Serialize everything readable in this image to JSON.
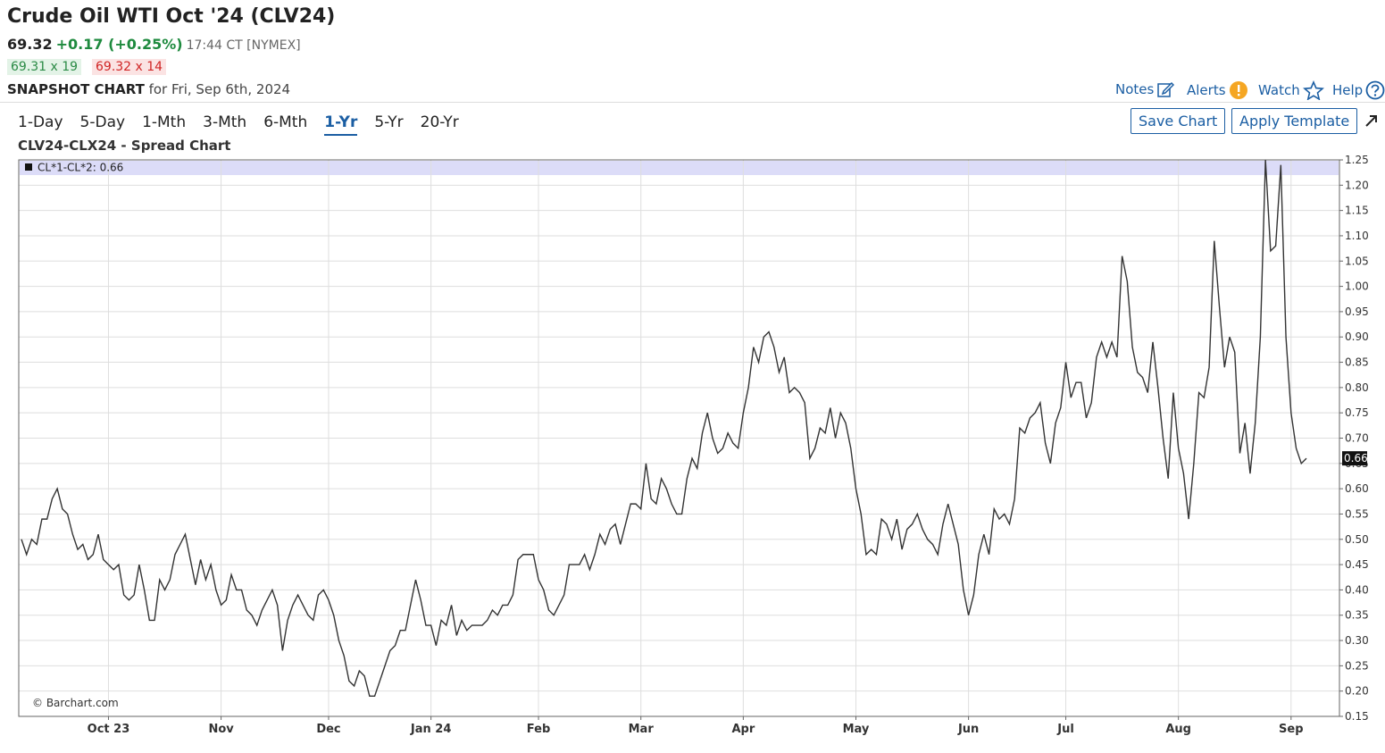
{
  "header": {
    "title": "Crude Oil WTI Oct '24 (CLV24)",
    "price": "69.32",
    "change": "+0.17 (+0.25%)",
    "time": "17:44 CT [NYMEX]",
    "bid": "69.31 x 19",
    "ask": "69.32 x 14",
    "snapshot_label": "SNAPSHOT CHART",
    "snapshot_date": "for Fri, Sep 6th, 2024"
  },
  "links": [
    "Notes",
    "Alerts",
    "Watch",
    "Help"
  ],
  "periods": [
    "1-Day",
    "5-Day",
    "1-Mth",
    "3-Mth",
    "6-Mth",
    "1-Yr",
    "5-Yr",
    "20-Yr"
  ],
  "active_period_index": 5,
  "buttons": [
    "Save Chart",
    "Apply Template"
  ],
  "chart_data": {
    "type": "line",
    "title": "CLV24-CLX24 - Spread Chart",
    "credit": "© Barchart.com",
    "categories": [
      null,
      null,
      null,
      null,
      null,
      null,
      null,
      null,
      null,
      null,
      null,
      null,
      null,
      null,
      null,
      null,
      null,
      "Oct 23",
      null,
      null,
      null,
      null,
      null,
      null,
      null,
      null,
      null,
      null,
      null,
      null,
      null,
      null,
      null,
      null,
      null,
      null,
      null,
      null,
      null,
      "Nov",
      null,
      null,
      null,
      null,
      null,
      null,
      null,
      null,
      null,
      null,
      null,
      null,
      null,
      null,
      null,
      null,
      null,
      null,
      null,
      null,
      "Dec",
      null,
      null,
      null,
      null,
      null,
      null,
      null,
      null,
      null,
      null,
      null,
      null,
      null,
      null,
      null,
      null,
      null,
      null,
      null,
      "Jan 24",
      null,
      null,
      null,
      null,
      null,
      null,
      null,
      null,
      null,
      null,
      null,
      null,
      null,
      null,
      null,
      null,
      null,
      null,
      null,
      null,
      "Feb",
      null,
      null,
      null,
      null,
      null,
      null,
      null,
      null,
      null,
      null,
      null,
      null,
      null,
      null,
      null,
      null,
      null,
      null,
      null,
      "Mar",
      null,
      null,
      null,
      null,
      null,
      null,
      null,
      null,
      null,
      null,
      null,
      null,
      null,
      null,
      null,
      null,
      null,
      null,
      null,
      "Apr",
      null,
      null,
      null,
      null,
      null,
      null,
      null,
      null,
      null,
      null,
      null,
      null,
      null,
      null,
      null,
      null,
      null,
      null,
      null,
      null,
      null,
      "May",
      null,
      null,
      null,
      null,
      null,
      null,
      null,
      null,
      null,
      null,
      null,
      null,
      null,
      null,
      null,
      null,
      null,
      null,
      null,
      null,
      null,
      "Jun",
      null,
      null,
      null,
      null,
      null,
      null,
      null,
      null,
      null,
      null,
      null,
      null,
      null,
      null,
      null,
      null,
      null,
      null,
      "Jul",
      null,
      null,
      null,
      null,
      null,
      null,
      null,
      null,
      null,
      null,
      null,
      null,
      null,
      null,
      null,
      null,
      null,
      null,
      null,
      null,
      null,
      "Aug",
      null,
      null,
      null,
      null,
      null,
      null,
      null,
      null,
      null,
      null,
      null,
      null,
      null,
      null,
      null,
      null,
      null,
      null,
      null,
      null,
      null,
      "Sep",
      null,
      null,
      null
    ],
    "series": [
      {
        "name": "CL*1-CL*2: 0.66",
        "color": "#333333",
        "values": [
          0.5,
          0.47,
          0.5,
          0.49,
          0.54,
          0.54,
          0.58,
          0.6,
          0.56,
          0.55,
          0.51,
          0.48,
          0.49,
          0.46,
          0.47,
          0.51,
          0.46,
          0.45,
          0.44,
          0.45,
          0.39,
          0.38,
          0.39,
          0.45,
          0.4,
          0.34,
          0.34,
          0.42,
          0.4,
          0.42,
          0.47,
          0.49,
          0.51,
          0.46,
          0.41,
          0.46,
          0.42,
          0.45,
          0.4,
          0.37,
          0.38,
          0.43,
          0.4,
          0.4,
          0.36,
          0.35,
          0.33,
          0.36,
          0.38,
          0.4,
          0.37,
          0.28,
          0.34,
          0.37,
          0.39,
          0.37,
          0.35,
          0.34,
          0.39,
          0.4,
          0.38,
          0.35,
          0.3,
          0.27,
          0.22,
          0.21,
          0.24,
          0.23,
          0.19,
          0.19,
          0.22,
          0.25,
          0.28,
          0.29,
          0.32,
          0.32,
          0.37,
          0.42,
          0.38,
          0.33,
          0.33,
          0.29,
          0.34,
          0.33,
          0.37,
          0.31,
          0.34,
          0.32,
          0.33,
          0.33,
          0.33,
          0.34,
          0.36,
          0.35,
          0.37,
          0.37,
          0.39,
          0.46,
          0.47,
          0.47,
          0.47,
          0.42,
          0.4,
          0.36,
          0.35,
          0.37,
          0.39,
          0.45,
          0.45,
          0.45,
          0.47,
          0.44,
          0.47,
          0.51,
          0.49,
          0.52,
          0.53,
          0.49,
          0.53,
          0.57,
          0.57,
          0.56,
          0.65,
          0.58,
          0.57,
          0.62,
          0.6,
          0.57,
          0.55,
          0.55,
          0.62,
          0.66,
          0.64,
          0.71,
          0.75,
          0.7,
          0.67,
          0.68,
          0.71,
          0.69,
          0.68,
          0.75,
          0.8,
          0.88,
          0.85,
          0.9,
          0.91,
          0.88,
          0.83,
          0.86,
          0.79,
          0.8,
          0.79,
          0.77,
          0.66,
          0.68,
          0.72,
          0.71,
          0.76,
          0.7,
          0.75,
          0.73,
          0.68,
          0.6,
          0.55,
          0.47,
          0.48,
          0.47,
          0.54,
          0.53,
          0.5,
          0.54,
          0.48,
          0.52,
          0.53,
          0.55,
          0.52,
          0.5,
          0.49,
          0.47,
          0.53,
          0.57,
          0.53,
          0.49,
          0.4,
          0.35,
          0.39,
          0.47,
          0.51,
          0.47,
          0.56,
          0.54,
          0.55,
          0.53,
          0.58,
          0.72,
          0.71,
          0.74,
          0.75,
          0.77,
          0.69,
          0.65,
          0.73,
          0.76,
          0.85,
          0.78,
          0.81,
          0.81,
          0.74,
          0.77,
          0.86,
          0.89,
          0.86,
          0.89,
          0.86,
          1.06,
          1.01,
          0.88,
          0.83,
          0.82,
          0.79,
          0.89,
          0.8,
          0.7,
          0.62,
          0.79,
          0.68,
          0.63,
          0.54,
          0.65,
          0.79,
          0.78,
          0.84,
          1.09,
          0.96,
          0.84,
          0.9,
          0.87,
          0.67,
          0.73,
          0.63,
          0.73,
          0.9,
          1.25,
          1.07,
          1.08,
          1.24,
          0.9,
          0.75,
          0.68,
          0.65,
          0.66
        ]
      }
    ],
    "ylim": [
      0.15,
      1.25
    ],
    "yticks": [
      {
        "value": 0.15,
        "label": "0.15"
      },
      {
        "value": 0.2,
        "label": "0.20"
      },
      {
        "value": 0.25,
        "label": "0.25"
      },
      {
        "value": 0.3,
        "label": "0.30"
      },
      {
        "value": 0.35,
        "label": "0.35"
      },
      {
        "value": 0.4,
        "label": "0.40"
      },
      {
        "value": 0.45,
        "label": "0.45"
      },
      {
        "value": 0.5,
        "label": "0.50"
      },
      {
        "value": 0.55,
        "label": "0.55"
      },
      {
        "value": 0.6,
        "label": "0.60"
      },
      {
        "value": 0.65,
        "label": "0.65"
      },
      {
        "value": 0.7,
        "label": "0.70"
      },
      {
        "value": 0.75,
        "label": "0.75"
      },
      {
        "value": 0.8,
        "label": "0.80"
      },
      {
        "value": 0.85,
        "label": "0.85"
      },
      {
        "value": 0.9,
        "label": "0.90"
      },
      {
        "value": 0.95,
        "label": "0.95"
      },
      {
        "value": 1.0,
        "label": "1.00"
      },
      {
        "value": 1.05,
        "label": "1.05"
      },
      {
        "value": 1.1,
        "label": "1.10"
      },
      {
        "value": 1.15,
        "label": "1.15"
      },
      {
        "value": 1.2,
        "label": "1.20"
      },
      {
        "value": 1.25,
        "label": "1.25"
      }
    ],
    "grid": true
  }
}
